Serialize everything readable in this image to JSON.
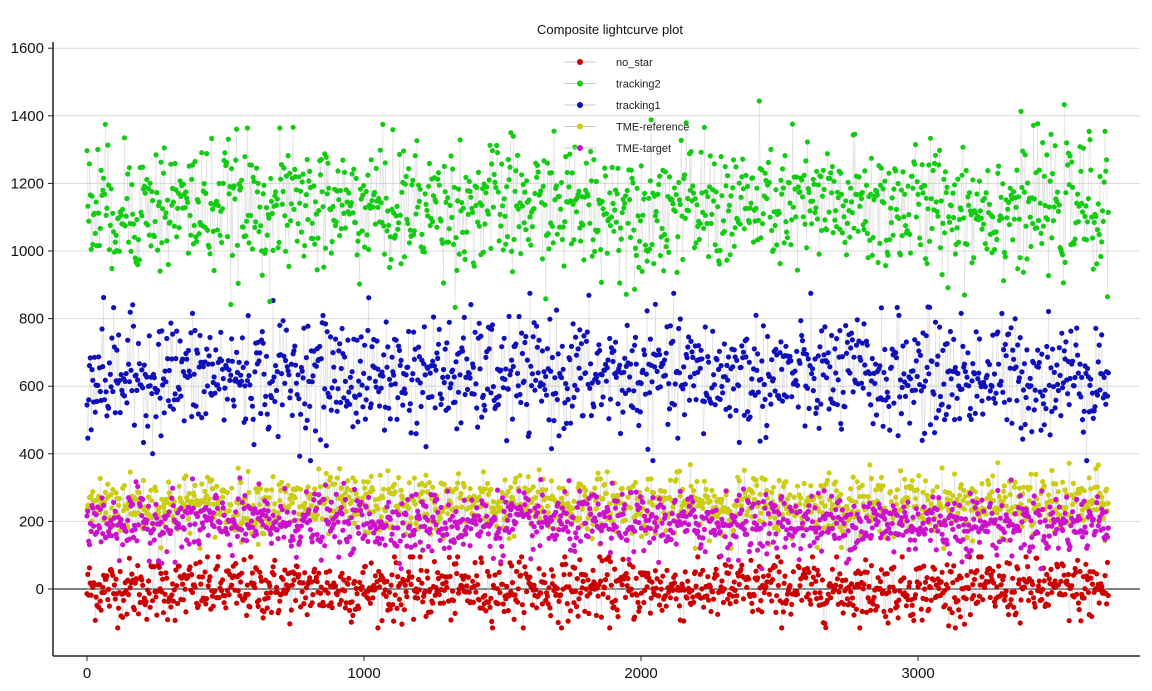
{
  "chart_data": {
    "type": "scatter",
    "title": "Composite lightcurve plot",
    "xlabel": "",
    "ylabel": "",
    "xlim": [
      -60,
      3780
    ],
    "ylim": [
      -175,
      1620
    ],
    "x_ticks": [
      0,
      1000,
      2000,
      3000
    ],
    "y_ticks": [
      0,
      200,
      400,
      600,
      800,
      1000,
      1200,
      1400,
      1600
    ],
    "y_ticks_labeled": [
      0,
      200,
      400,
      600,
      800,
      1000,
      1200,
      1400,
      1600
    ],
    "grid": "horizontal",
    "legend_position": "top-center",
    "connecting_line_color": "#c8c8c8",
    "n_points": 3690,
    "series": [
      {
        "name": "no_star",
        "color": "#cc0000",
        "approx_mean": 0,
        "approx_spread": 45,
        "min": -115,
        "max": 95
      },
      {
        "name": "tracking2",
        "color": "#11cc11",
        "approx_mean": 1130,
        "approx_spread": 95,
        "min": 780,
        "max": 1525
      },
      {
        "name": "tracking1",
        "color": "#1010bb",
        "approx_mean": 630,
        "approx_spread": 85,
        "min": 380,
        "max": 875
      },
      {
        "name": "TME-reference",
        "color": "#cccc11",
        "approx_mean": 250,
        "approx_spread": 45,
        "min": 120,
        "max": 430
      },
      {
        "name": "TME-target",
        "color": "#cc11cc",
        "approx_mean": 195,
        "approx_spread": 45,
        "min": 60,
        "max": 360
      }
    ]
  }
}
